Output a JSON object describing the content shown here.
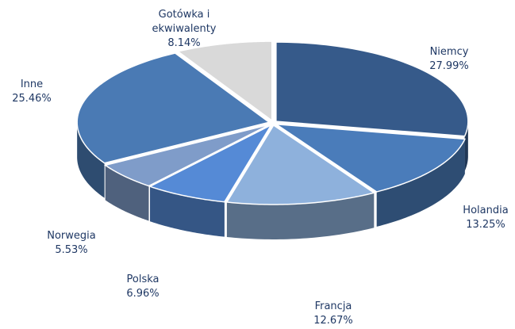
{
  "chart_data": {
    "type": "pie",
    "categories": [
      "Niemcy",
      "Holandia",
      "Francja",
      "Polska",
      "Norwegia",
      "Inne",
      "Gotówka i ekwiwalenty"
    ],
    "values": [
      27.99,
      13.25,
      12.67,
      6.96,
      5.53,
      25.46,
      8.14
    ],
    "value_labels": [
      "27.99%",
      "13.25%",
      "12.67%",
      "6.96%",
      "5.53%",
      "25.46%",
      "8.14%"
    ],
    "colors": [
      "#365a8a",
      "#4a7cba",
      "#8eb1dc",
      "#558ad6",
      "#7f9cc9",
      "#4a7ab4",
      "#d9d9d9"
    ]
  }
}
